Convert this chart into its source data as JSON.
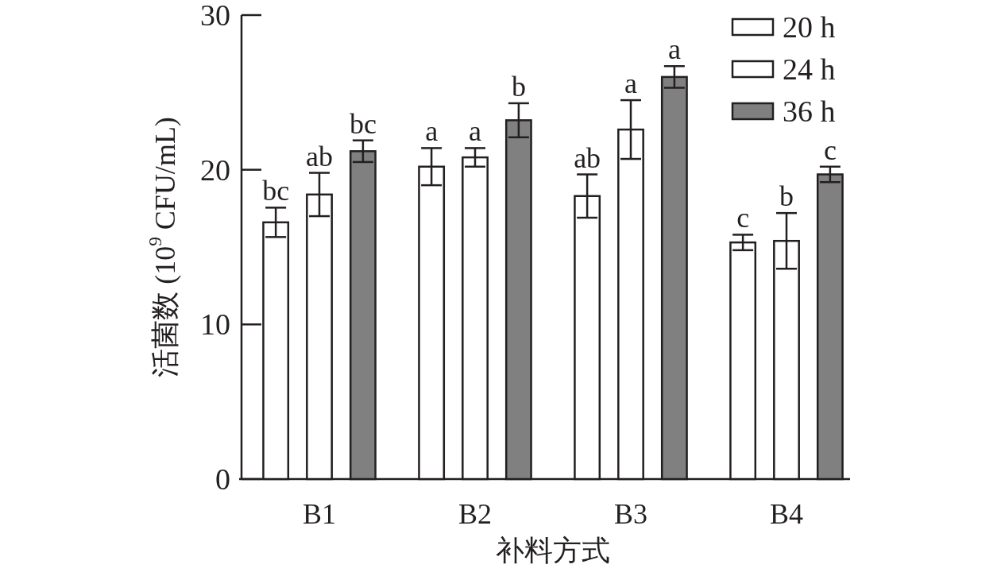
{
  "chart_data": {
    "type": "bar",
    "ylabel": "活菌数 (10$^{9}$ CFU/mL)",
    "xlabel": "补料方式",
    "categories": [
      "B1",
      "B2",
      "B3",
      "B4"
    ],
    "series": [
      {
        "name": "20 h",
        "color": "#ffffff",
        "values": [
          16.6,
          20.2,
          18.3,
          15.3
        ],
        "errors": [
          0.95,
          1.2,
          1.4,
          0.5
        ],
        "value_labels": [
          "bc",
          "a",
          "ab",
          "c"
        ]
      },
      {
        "name": "24 h",
        "color": "#ffffff",
        "values": [
          18.4,
          20.8,
          22.6,
          15.4
        ],
        "errors": [
          1.4,
          0.6,
          1.9,
          1.8
        ],
        "value_labels": [
          "ab",
          "a",
          "a",
          "b"
        ]
      },
      {
        "name": "36 h",
        "color": "#808080",
        "values": [
          21.2,
          23.2,
          26.0,
          19.7
        ],
        "errors": [
          0.7,
          1.1,
          0.7,
          0.5
        ],
        "value_labels": [
          "bc",
          "b",
          "a",
          "c"
        ]
      }
    ],
    "ylim": [
      0,
      30
    ],
    "yticks": [
      0,
      10,
      20,
      30
    ],
    "legend": "top right",
    "grid": false
  }
}
